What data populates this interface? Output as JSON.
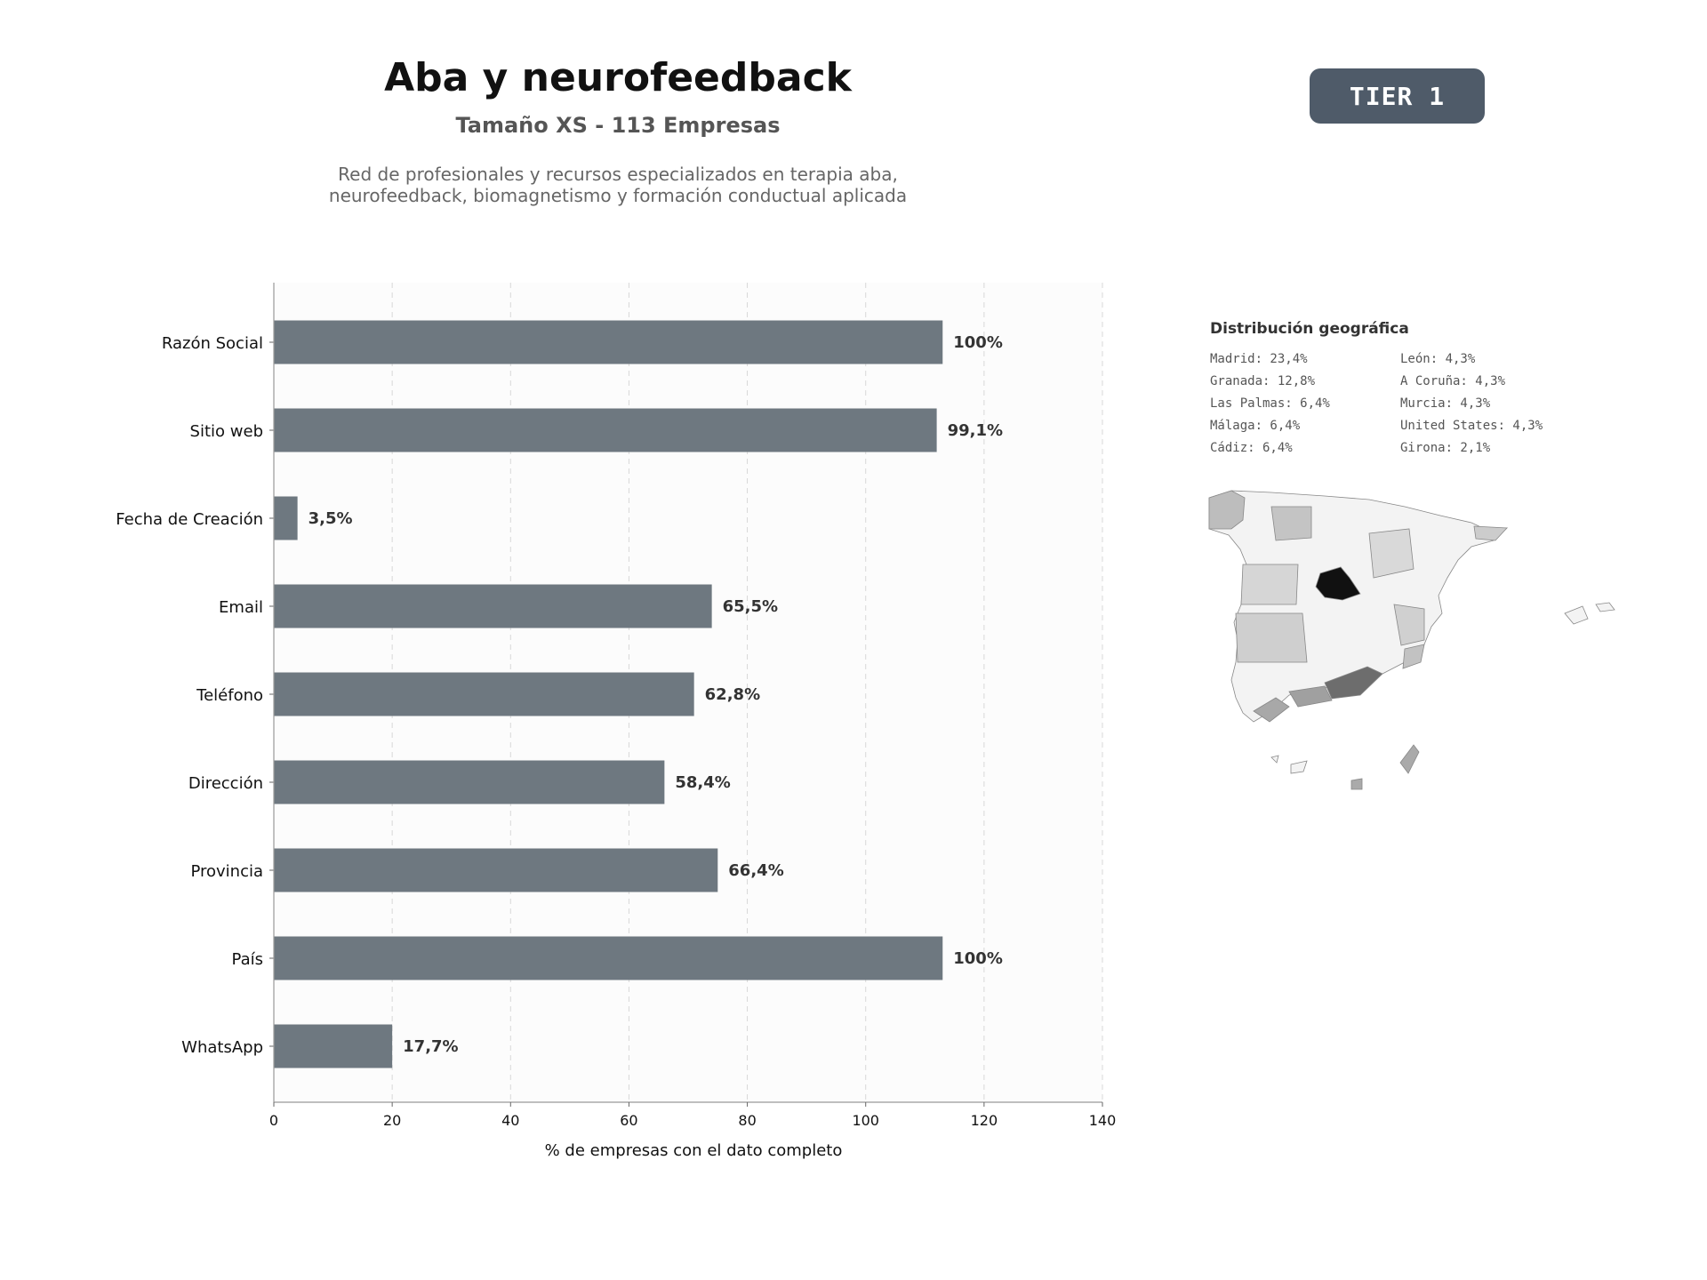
{
  "header": {
    "title": "Aba y neurofeedback",
    "subtitle": "Tamaño XS - 113 Empresas",
    "description_line1": "Red de profesionales y recursos especializados en terapia aba,",
    "description_line2": "neurofeedback, biomagnetismo y formación conductual aplicada",
    "tier": "TIER 1"
  },
  "chart_data": {
    "type": "bar",
    "orientation": "horizontal",
    "categories": [
      "Razón Social",
      "Sitio web",
      "Fecha de Creación",
      "Email",
      "Teléfono",
      "Dirección",
      "Provincia",
      "País",
      "WhatsApp"
    ],
    "values": [
      113,
      112,
      4,
      74,
      71,
      66,
      75,
      113,
      20
    ],
    "value_labels": [
      "100%",
      "99,1%",
      "3,5%",
      "65,5%",
      "62,8%",
      "58,4%",
      "66,4%",
      "100%",
      "17,7%"
    ],
    "xlabel": "% de empresas con el dato completo",
    "xlim": [
      0,
      140
    ],
    "xticks": [
      0,
      20,
      40,
      60,
      80,
      100,
      120,
      140
    ],
    "grid": true,
    "bar_color": "#6e7880"
  },
  "geo": {
    "title": "Distribución geográfica",
    "items": [
      "Madrid: 23,4%",
      "León: 4,3%",
      "Granada: 12,8%",
      "A Coruña: 4,3%",
      "Las Palmas: 6,4%",
      "Murcia: 4,3%",
      "Málaga: 6,4%",
      "United States: 4,3%",
      "Cádiz: 6,4%",
      "Girona: 2,1%"
    ]
  }
}
